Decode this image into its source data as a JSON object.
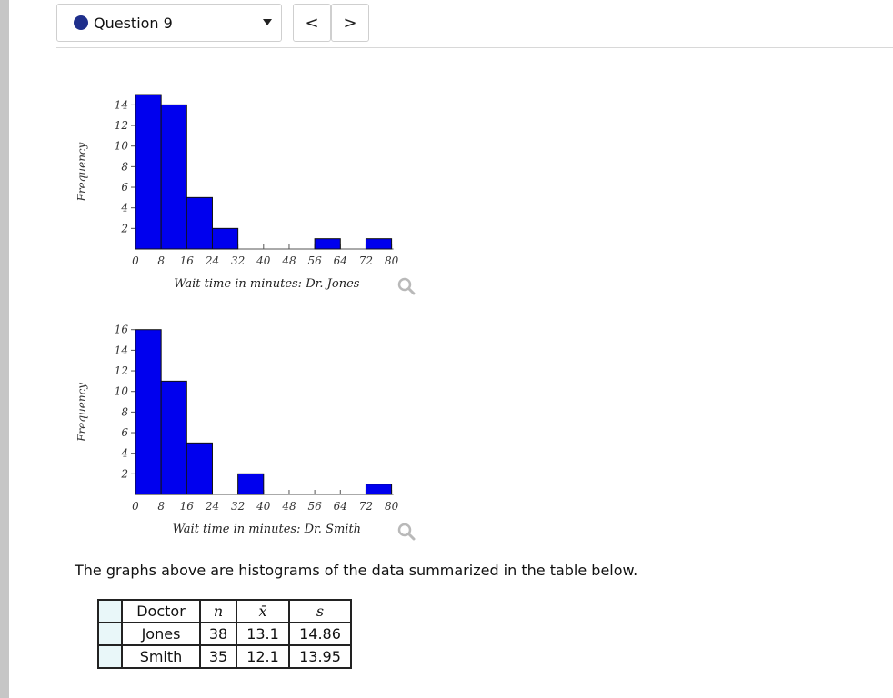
{
  "header": {
    "question_label": "Question 9",
    "prev_label": "<",
    "next_label": ">",
    "status_color": "#1f2f8c"
  },
  "histograms": [
    {
      "ylabel": "Frequency",
      "xlabel": "Wait time in minutes: Dr. Jones",
      "bar_color": "#0000ee",
      "x_ticks": [
        0,
        8,
        16,
        24,
        32,
        40,
        48,
        56,
        64,
        72,
        80
      ],
      "y_ticks": [
        2,
        4,
        6,
        8,
        10,
        12,
        14
      ],
      "y_max": 15,
      "bins": [
        {
          "start": 0,
          "end": 8,
          "count": 15
        },
        {
          "start": 8,
          "end": 16,
          "count": 14
        },
        {
          "start": 16,
          "end": 24,
          "count": 5
        },
        {
          "start": 24,
          "end": 32,
          "count": 2
        },
        {
          "start": 56,
          "end": 64,
          "count": 1
        },
        {
          "start": 72,
          "end": 80,
          "count": 1
        }
      ]
    },
    {
      "ylabel": "Frequency",
      "xlabel": "Wait time in minutes: Dr. Smith",
      "bar_color": "#0000ee",
      "x_ticks": [
        0,
        8,
        16,
        24,
        32,
        40,
        48,
        56,
        64,
        72,
        80
      ],
      "y_ticks": [
        2,
        4,
        6,
        8,
        10,
        12,
        14,
        16
      ],
      "y_max": 16,
      "bins": [
        {
          "start": 0,
          "end": 8,
          "count": 16
        },
        {
          "start": 8,
          "end": 16,
          "count": 11
        },
        {
          "start": 16,
          "end": 24,
          "count": 5
        },
        {
          "start": 32,
          "end": 40,
          "count": 2
        },
        {
          "start": 72,
          "end": 80,
          "count": 1
        }
      ]
    }
  ],
  "description": "The graphs above are histograms of the data summarized in the table below.",
  "table": {
    "headers": [
      "Doctor",
      "n",
      "x̄",
      "s"
    ],
    "rows": [
      [
        "Jones",
        "38",
        "13.1",
        "14.86"
      ],
      [
        "Smith",
        "35",
        "12.1",
        "13.95"
      ]
    ]
  }
}
